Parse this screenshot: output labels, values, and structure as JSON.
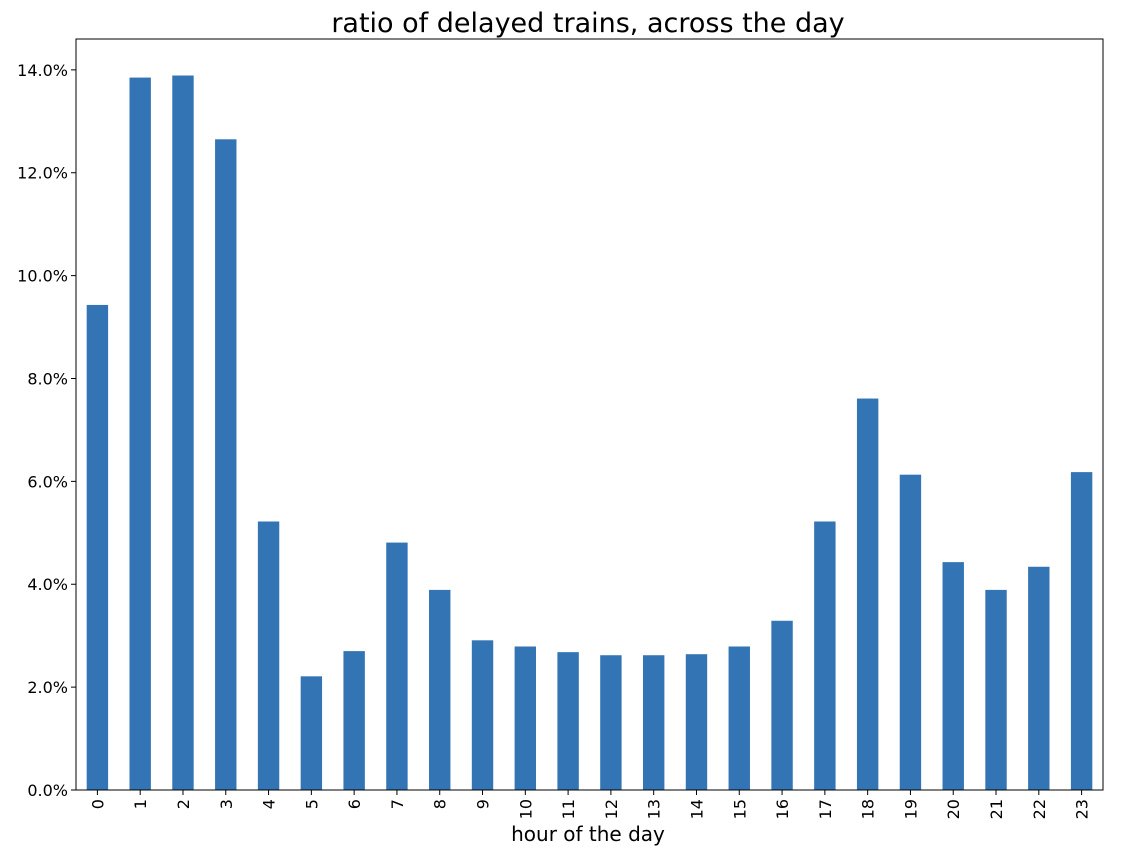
{
  "chart_data": {
    "type": "bar",
    "title": "ratio of delayed trains, across  the day",
    "xlabel": "hour of the day",
    "ylabel": "",
    "categories": [
      "0",
      "1",
      "2",
      "3",
      "4",
      "5",
      "6",
      "7",
      "8",
      "9",
      "10",
      "11",
      "12",
      "13",
      "14",
      "15",
      "16",
      "17",
      "18",
      "19",
      "20",
      "21",
      "22",
      "23"
    ],
    "values": [
      0.0943,
      0.1385,
      0.1389,
      0.1265,
      0.0522,
      0.0221,
      0.027,
      0.0481,
      0.0389,
      0.0291,
      0.0279,
      0.0268,
      0.0262,
      0.0262,
      0.0264,
      0.0279,
      0.0329,
      0.0522,
      0.0761,
      0.0613,
      0.0443,
      0.0389,
      0.0434,
      0.0618
    ],
    "ylim": [
      0,
      0.146
    ],
    "yticks": [
      0,
      0.02,
      0.04,
      0.06,
      0.08,
      0.1,
      0.12,
      0.14
    ],
    "ytick_labels": [
      "0.0%",
      "2.0%",
      "4.0%",
      "6.0%",
      "8.0%",
      "10.0%",
      "12.0%",
      "14.0%"
    ],
    "bar_color": "#3274b4",
    "grid": false,
    "legend": "none"
  }
}
